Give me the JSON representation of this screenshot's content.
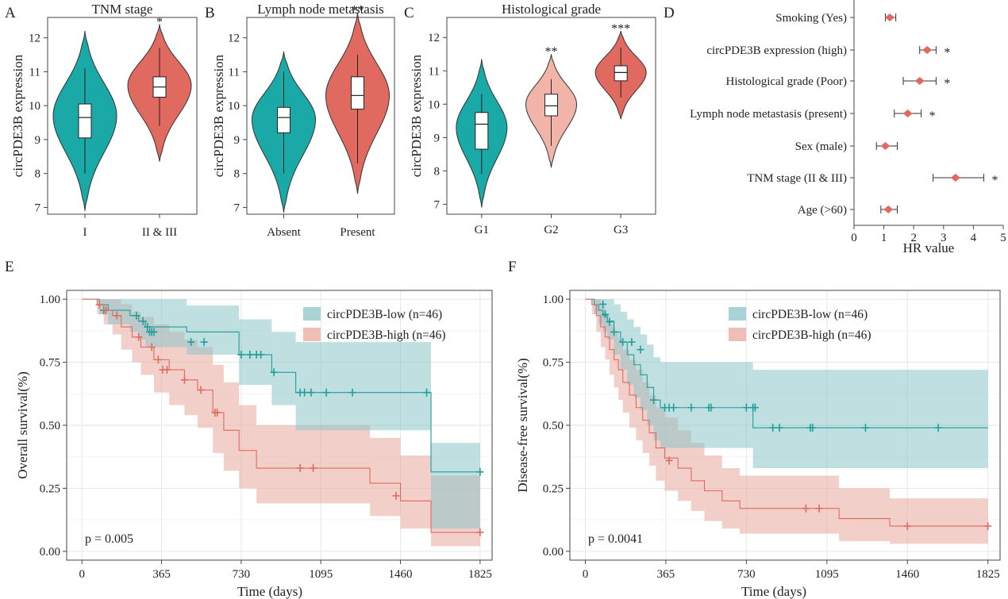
{
  "chart_data": [
    {
      "panel": "A",
      "type": "violin",
      "title": "TNM stage",
      "ylabel": "circPDE3B expression",
      "ylim": [
        6.8,
        12.6
      ],
      "yticks": [
        7,
        8,
        9,
        10,
        11,
        12
      ],
      "groups": [
        {
          "label": "I",
          "color": "#1aa9a6",
          "min": 6.9,
          "max": 12.2,
          "whisker_low": 8.0,
          "whisker_high": 11.1,
          "q1": 9.05,
          "median": 9.65,
          "q3": 10.05,
          "mode": 9.7,
          "sig": ""
        },
        {
          "label": "II & III",
          "color": "#e06a5f",
          "min": 8.35,
          "max": 12.4,
          "whisker_low": 9.4,
          "whisker_high": 11.7,
          "q1": 10.25,
          "median": 10.55,
          "q3": 10.85,
          "mode": 10.6,
          "sig": "*"
        }
      ]
    },
    {
      "panel": "B",
      "type": "violin",
      "title": "Lymph node metastasis",
      "ylabel": "circPDE3B expression",
      "ylim": [
        6.8,
        12.6
      ],
      "yticks": [
        7,
        8,
        9,
        10,
        11,
        12
      ],
      "groups": [
        {
          "label": "Absent",
          "color": "#1aa9a6",
          "min": 6.85,
          "max": 11.6,
          "whisker_low": 8.0,
          "whisker_high": 11.0,
          "q1": 9.2,
          "median": 9.65,
          "q3": 9.95,
          "mode": 9.6,
          "sig": ""
        },
        {
          "label": "Present",
          "color": "#e06a5f",
          "min": 7.4,
          "max": 12.75,
          "whisker_low": 8.3,
          "whisker_high": 11.5,
          "q1": 9.9,
          "median": 10.3,
          "q3": 10.85,
          "mode": 10.3,
          "sig": "**"
        }
      ]
    },
    {
      "panel": "C",
      "type": "violin",
      "title": "Histological grade",
      "ylabel": "circPDE3B expression",
      "ylim": [
        6.7,
        12.6
      ],
      "yticks": [
        7,
        8,
        9,
        10,
        11,
        12
      ],
      "groups": [
        {
          "label": "G1",
          "color": "#1aa9a6",
          "min": 6.9,
          "max": 11.35,
          "whisker_low": 7.9,
          "whisker_high": 10.3,
          "q1": 8.65,
          "median": 9.4,
          "q3": 9.75,
          "mode": 9.3,
          "sig": ""
        },
        {
          "label": "G2",
          "color": "#f2b3a8",
          "min": 8.1,
          "max": 11.5,
          "whisker_low": 8.75,
          "whisker_high": 10.75,
          "q1": 9.65,
          "median": 9.95,
          "q3": 10.3,
          "mode": 10.0,
          "sig": "**"
        },
        {
          "label": "G3",
          "color": "#e06a5f",
          "min": 9.55,
          "max": 12.2,
          "whisker_low": 10.2,
          "whisker_high": 11.7,
          "q1": 10.7,
          "median": 10.95,
          "q3": 11.15,
          "mode": 10.95,
          "sig": "***"
        }
      ]
    },
    {
      "panel": "D",
      "type": "forest",
      "xlabel": "HR value",
      "xlim": [
        0,
        5
      ],
      "xticks": [
        0,
        1,
        2,
        3,
        4,
        5
      ],
      "point_color": "#e06a5f",
      "rows": [
        {
          "label": "Smoking (Yes)",
          "hr": 1.2,
          "lo": 1.05,
          "hi": 1.4,
          "sig": ""
        },
        {
          "label": "circPDE3B expression (high)",
          "hr": 2.45,
          "lo": 2.2,
          "hi": 2.75,
          "sig": "*"
        },
        {
          "label": "Histological grade (Poor)",
          "hr": 2.2,
          "lo": 1.65,
          "hi": 2.75,
          "sig": "*"
        },
        {
          "label": "Lymph node metastasis (present)",
          "hr": 1.8,
          "lo": 1.35,
          "hi": 2.25,
          "sig": "*"
        },
        {
          "label": "Sex (male)",
          "hr": 1.05,
          "lo": 0.75,
          "hi": 1.45,
          "sig": ""
        },
        {
          "label": "TNM stage (II & III)",
          "hr": 3.4,
          "lo": 2.65,
          "hi": 4.35,
          "sig": "*"
        },
        {
          "label": "Age (>60)",
          "hr": 1.15,
          "lo": 0.9,
          "hi": 1.45,
          "sig": ""
        }
      ]
    },
    {
      "panel": "E",
      "type": "line",
      "ylabel": "Overall survival(%)",
      "xlabel": "Time (days)",
      "xlim": [
        -70,
        1880
      ],
      "ylim": [
        -0.035,
        1.035
      ],
      "xticks": [
        0,
        365,
        730,
        1095,
        1460,
        1825
      ],
      "yticks": [
        "0.00",
        "0.25",
        "0.50",
        "0.75",
        "1.00"
      ],
      "pvalue": "p = 0.005",
      "series": [
        {
          "name": "circPDE3B-low (n=46)",
          "color": "#1f9e9b",
          "band_color": "#8cc4c6",
          "x": [
            0,
            80,
            120,
            220,
            260,
            290,
            480,
            720,
            870,
            980,
            1600,
            1825
          ],
          "y": [
            1.0,
            0.978,
            0.956,
            0.935,
            0.913,
            0.89,
            0.87,
            0.78,
            0.71,
            0.63,
            0.315,
            0.315
          ],
          "lo": [
            1.0,
            0.94,
            0.9,
            0.87,
            0.84,
            0.81,
            0.78,
            0.66,
            0.58,
            0.48,
            0.09,
            0.09
          ],
          "hi": [
            1.0,
            1.0,
            1.0,
            1.0,
            1.0,
            1.0,
            0.975,
            0.92,
            0.87,
            0.83,
            0.43,
            0.43
          ],
          "censor_x": [
            100,
            250,
            280,
            300,
            310,
            320,
            330,
            500,
            560,
            730,
            770,
            800,
            820,
            880,
            1000,
            1020,
            1050,
            1120,
            1240,
            1580,
            1825
          ],
          "censor_y": [
            0.956,
            0.935,
            0.913,
            0.89,
            0.87,
            0.87,
            0.87,
            0.83,
            0.83,
            0.78,
            0.78,
            0.78,
            0.78,
            0.71,
            0.63,
            0.63,
            0.63,
            0.63,
            0.63,
            0.63,
            0.315
          ]
        },
        {
          "name": "circPDE3B-high (n=46)",
          "color": "#e06a5f",
          "band_color": "#eaa89e",
          "x": [
            0,
            70,
            100,
            140,
            180,
            230,
            270,
            330,
            400,
            470,
            530,
            600,
            650,
            720,
            800,
            1320,
            1460,
            1600,
            1825
          ],
          "y": [
            1.0,
            0.978,
            0.956,
            0.935,
            0.89,
            0.85,
            0.81,
            0.76,
            0.72,
            0.68,
            0.64,
            0.55,
            0.48,
            0.4,
            0.33,
            0.27,
            0.2,
            0.075,
            0.075
          ],
          "lo": [
            1.0,
            0.94,
            0.9,
            0.86,
            0.8,
            0.75,
            0.7,
            0.63,
            0.58,
            0.54,
            0.49,
            0.39,
            0.32,
            0.25,
            0.19,
            0.14,
            0.09,
            0.02,
            0.02
          ],
          "hi": [
            1.0,
            1.0,
            1.0,
            1.0,
            0.98,
            0.95,
            0.93,
            0.9,
            0.87,
            0.84,
            0.81,
            0.74,
            0.67,
            0.58,
            0.5,
            0.45,
            0.38,
            0.3,
            0.3
          ],
          "censor_x": [
            80,
            110,
            160,
            260,
            320,
            350,
            370,
            390,
            470,
            545,
            610,
            620,
            1000,
            1060,
            1440,
            1825
          ],
          "censor_y": [
            0.978,
            0.956,
            0.935,
            0.85,
            0.81,
            0.76,
            0.72,
            0.72,
            0.68,
            0.64,
            0.55,
            0.55,
            0.33,
            0.33,
            0.22,
            0.075
          ]
        }
      ]
    },
    {
      "panel": "F",
      "type": "line",
      "ylabel": "Disease-free survival(%)",
      "xlabel": "Time (days)",
      "xlim": [
        -70,
        1880
      ],
      "ylim": [
        -0.035,
        1.035
      ],
      "xticks": [
        0,
        365,
        730,
        1095,
        1460,
        1825
      ],
      "yticks": [
        "0.00",
        "0.25",
        "0.50",
        "0.75",
        "1.00"
      ],
      "pvalue": "p = 0.0041",
      "series": [
        {
          "name": "circPDE3B-low (n=46)",
          "color": "#1f9e9b",
          "band_color": "#8cc4c6",
          "x": [
            0,
            40,
            60,
            80,
            100,
            130,
            160,
            190,
            220,
            250,
            280,
            310,
            340,
            760,
            1825
          ],
          "y": [
            1.0,
            0.978,
            0.956,
            0.935,
            0.913,
            0.87,
            0.83,
            0.78,
            0.74,
            0.7,
            0.65,
            0.6,
            0.57,
            0.49,
            0.49
          ],
          "lo": [
            1.0,
            0.94,
            0.9,
            0.87,
            0.84,
            0.78,
            0.72,
            0.66,
            0.61,
            0.56,
            0.5,
            0.44,
            0.41,
            0.33,
            0.33
          ],
          "hi": [
            1.0,
            1.0,
            1.0,
            1.0,
            1.0,
            0.98,
            0.95,
            0.92,
            0.89,
            0.86,
            0.82,
            0.77,
            0.75,
            0.72,
            0.72
          ],
          "censor_x": [
            80,
            90,
            110,
            130,
            170,
            210,
            250,
            310,
            360,
            380,
            400,
            480,
            560,
            570,
            730,
            760,
            770,
            850,
            880,
            1020,
            1030,
            1270,
            1600
          ],
          "censor_y": [
            0.98,
            0.94,
            0.91,
            0.87,
            0.83,
            0.83,
            0.8,
            0.6,
            0.57,
            0.57,
            0.57,
            0.57,
            0.57,
            0.57,
            0.57,
            0.57,
            0.57,
            0.49,
            0.49,
            0.49,
            0.49,
            0.49,
            0.49
          ]
        },
        {
          "name": "circPDE3B-high (n=46)",
          "color": "#e06a5f",
          "band_color": "#eaa89e",
          "x": [
            0,
            30,
            50,
            70,
            90,
            110,
            130,
            150,
            170,
            200,
            230,
            260,
            290,
            320,
            360,
            420,
            480,
            540,
            620,
            700,
            1150,
            1380,
            1825
          ],
          "y": [
            1.0,
            0.978,
            0.935,
            0.89,
            0.85,
            0.8,
            0.76,
            0.72,
            0.67,
            0.62,
            0.57,
            0.52,
            0.47,
            0.41,
            0.37,
            0.33,
            0.28,
            0.24,
            0.2,
            0.17,
            0.13,
            0.1,
            0.1
          ],
          "lo": [
            1.0,
            0.94,
            0.87,
            0.81,
            0.76,
            0.7,
            0.65,
            0.6,
            0.55,
            0.49,
            0.44,
            0.39,
            0.34,
            0.28,
            0.24,
            0.2,
            0.16,
            0.12,
            0.09,
            0.07,
            0.04,
            0.03,
            0.03
          ],
          "hi": [
            1.0,
            1.0,
            1.0,
            0.97,
            0.94,
            0.9,
            0.87,
            0.84,
            0.8,
            0.76,
            0.72,
            0.67,
            0.62,
            0.57,
            0.53,
            0.48,
            0.43,
            0.38,
            0.33,
            0.3,
            0.25,
            0.21,
            0.21
          ],
          "censor_x": [
            380,
            1000,
            1060,
            1460,
            1825
          ],
          "censor_y": [
            0.36,
            0.17,
            0.17,
            0.1,
            0.1
          ]
        }
      ]
    }
  ],
  "panel_letters": [
    "A",
    "B",
    "C",
    "D",
    "E",
    "F"
  ]
}
